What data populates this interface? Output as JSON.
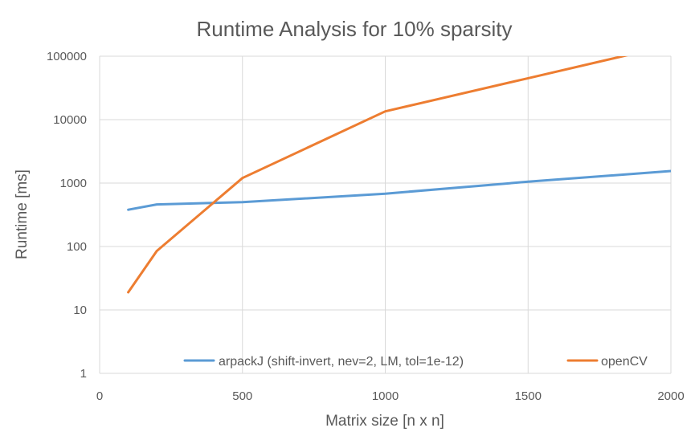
{
  "chart_data": {
    "type": "line",
    "title": "Runtime Analysis for 10% sparsity",
    "xlabel": "Matrix size [n x n]",
    "ylabel": "Runtime [ms]",
    "xlim": [
      0,
      2000
    ],
    "ylim": [
      1,
      100000
    ],
    "yscale": "log",
    "grid": true,
    "legend_position": "bottom-inside",
    "x_ticks": [
      0,
      500,
      1000,
      1500,
      2000
    ],
    "x_tick_labels": [
      "0",
      "500",
      "1000",
      "1500",
      "2000"
    ],
    "y_ticks": [
      1,
      10,
      100,
      1000,
      10000,
      100000
    ],
    "y_tick_labels": [
      "1",
      "10",
      "100",
      "1000",
      "10000",
      "100000"
    ],
    "series": [
      {
        "name": "arpackJ (shift-invert, nev=2, LM, tol=1e-12)",
        "color": "#5b9bd5",
        "x": [
          100,
          200,
          500,
          1000,
          1500,
          2000
        ],
        "values": [
          380,
          460,
          500,
          680,
          1050,
          1550
        ]
      },
      {
        "name": "openCV",
        "color": "#ed7d31",
        "x": [
          100,
          200,
          500,
          1000,
          1500,
          2000
        ],
        "values": [
          19,
          85,
          1200,
          13500,
          45000,
          150000
        ]
      }
    ]
  }
}
